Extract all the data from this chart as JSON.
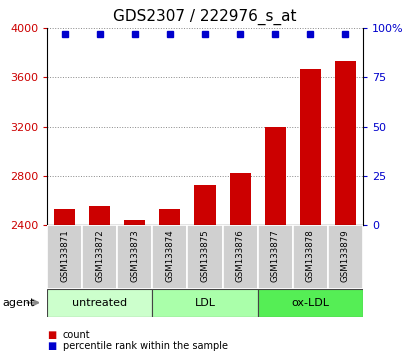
{
  "title": "GDS2307 / 222976_s_at",
  "samples": [
    "GSM133871",
    "GSM133872",
    "GSM133873",
    "GSM133874",
    "GSM133875",
    "GSM133876",
    "GSM133877",
    "GSM133878",
    "GSM133879"
  ],
  "counts": [
    2530,
    2555,
    2440,
    2525,
    2720,
    2820,
    3200,
    3670,
    3730
  ],
  "percentile_vals": [
    97,
    97,
    97,
    97,
    97,
    97,
    97,
    97,
    97
  ],
  "ylim_left": [
    2400,
    4000
  ],
  "ylim_right": [
    0,
    100
  ],
  "yticks_left": [
    2400,
    2800,
    3200,
    3600,
    4000
  ],
  "yticks_right": [
    0,
    25,
    50,
    75,
    100
  ],
  "groups": [
    {
      "label": "untreated",
      "indices": [
        0,
        1,
        2
      ],
      "color": "#ccffcc"
    },
    {
      "label": "LDL",
      "indices": [
        3,
        4,
        5
      ],
      "color": "#aaffaa"
    },
    {
      "label": "ox-LDL",
      "indices": [
        6,
        7,
        8
      ],
      "color": "#55ee55"
    }
  ],
  "bar_color": "#cc0000",
  "dot_color": "#0000cc",
  "bar_width": 0.6,
  "sample_cell_color": "#d0d0d0",
  "grid_color": "#888888",
  "title_fontsize": 11,
  "left_color": "#cc0000",
  "right_color": "#0000cc",
  "legend_count_color": "#cc0000",
  "legend_pct_color": "#0000cc"
}
